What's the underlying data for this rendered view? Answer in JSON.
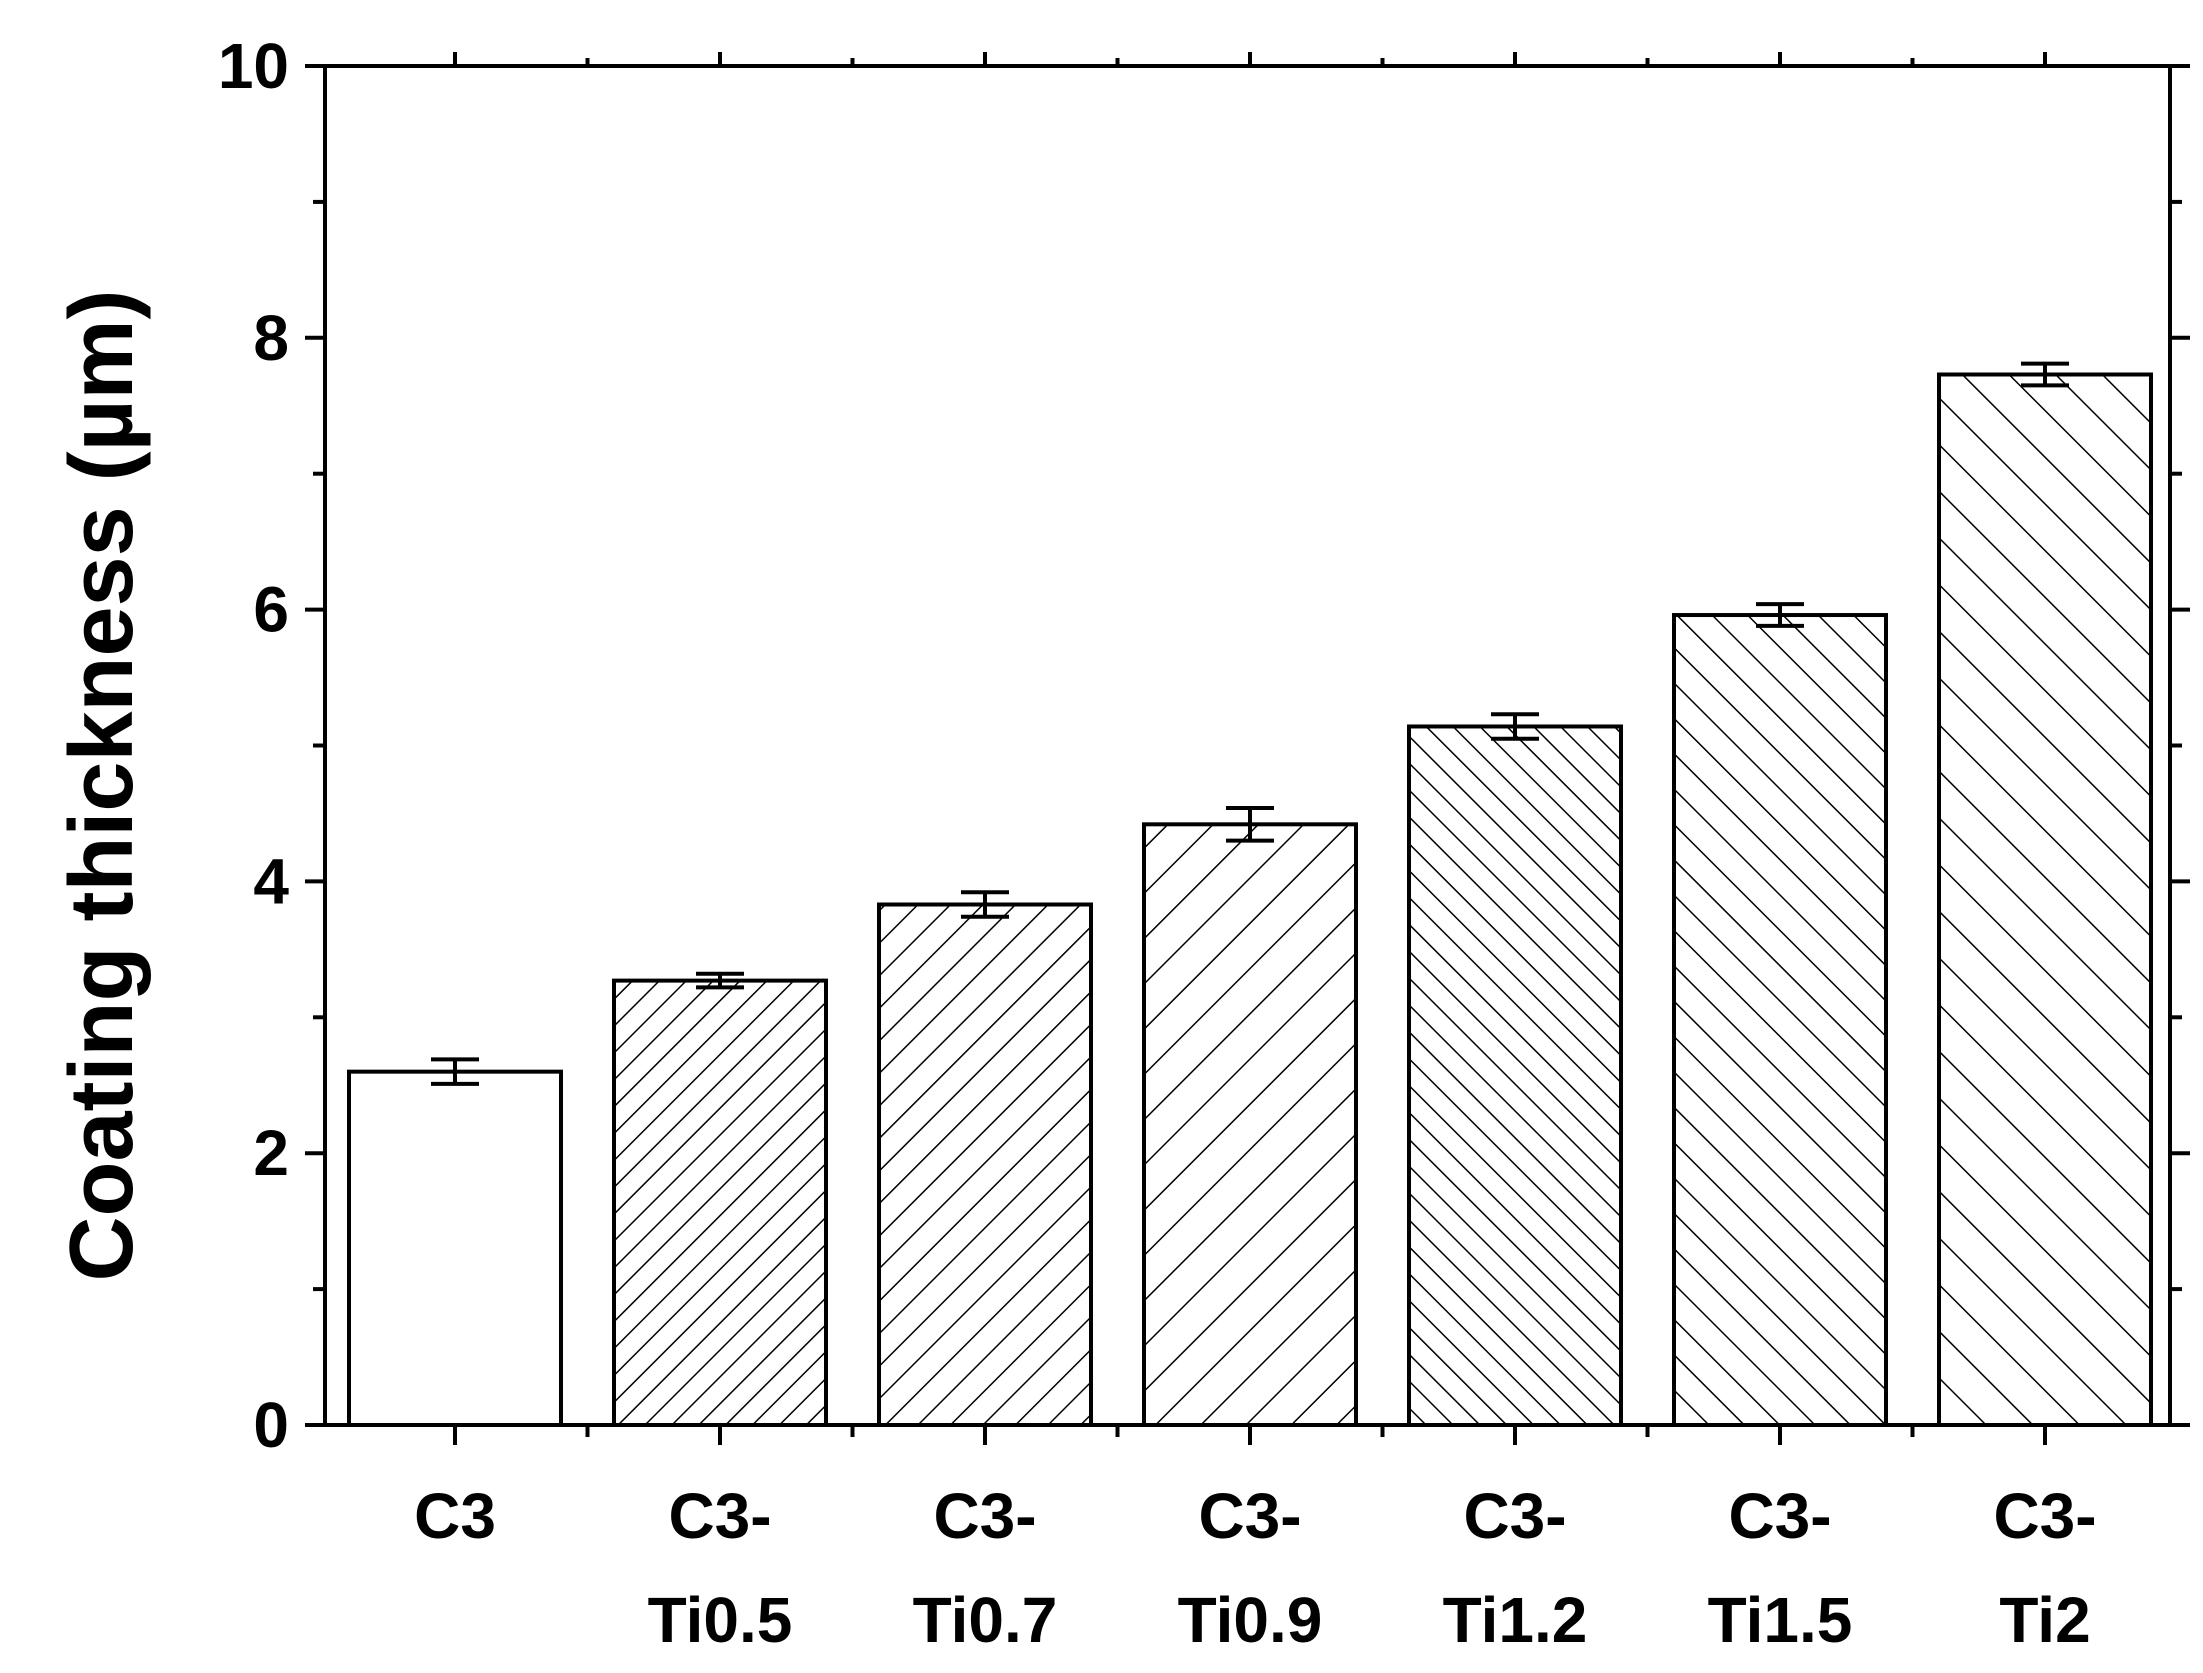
{
  "chart_data": {
    "type": "bar",
    "xlabel": "",
    "ylabel": "Coating thickness (µm)",
    "ylim": [
      0,
      10
    ],
    "yticks": [
      "0",
      "2",
      "4",
      "6",
      "8",
      "10"
    ],
    "grid": false,
    "categories": [
      {
        "line1": "C3",
        "line2": ""
      },
      {
        "line1": "C3-",
        "line2": "Ti0.5"
      },
      {
        "line1": "C3-",
        "line2": "Ti0.7"
      },
      {
        "line1": "C3-",
        "line2": "Ti0.9"
      },
      {
        "line1": "C3-",
        "line2": "Ti1.2"
      },
      {
        "line1": "C3-",
        "line2": "Ti1.5"
      },
      {
        "line1": "C3-",
        "line2": "Ti2"
      }
    ],
    "values": [
      2.6,
      3.27,
      3.83,
      4.42,
      5.14,
      5.96,
      7.73
    ],
    "errors": [
      0.09,
      0.05,
      0.09,
      0.12,
      0.09,
      0.08,
      0.08
    ],
    "hatch": [
      "none",
      "forward-dense",
      "forward-medium",
      "forward-sparse",
      "backward-dense",
      "backward-medium",
      "backward-sparse"
    ],
    "colors": {
      "bar_fill": "#ffffff",
      "stroke": "#000000"
    }
  }
}
